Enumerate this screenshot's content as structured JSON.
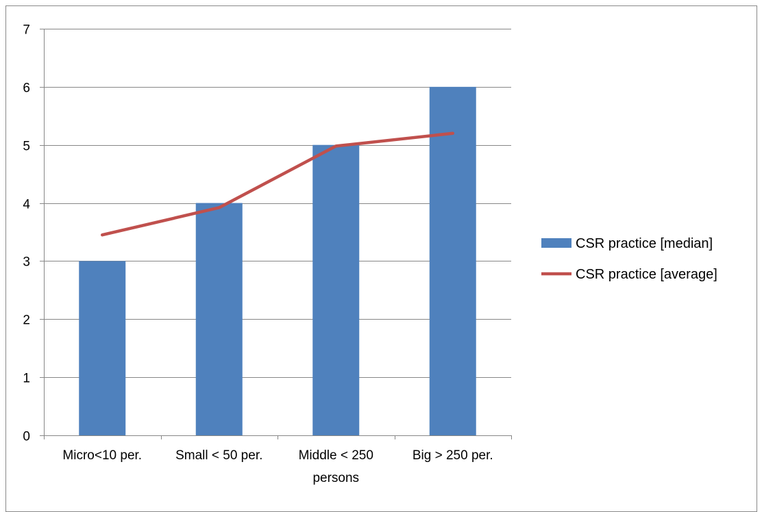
{
  "chart_data": {
    "type": "bar",
    "categories": [
      [
        "Micro<10 per."
      ],
      [
        "Small < 50 per."
      ],
      [
        "Middle < 250",
        "persons"
      ],
      [
        "Big > 250 per."
      ]
    ],
    "series": [
      {
        "name": "CSR practice [median]",
        "kind": "bar",
        "color": "#4F81BD",
        "values": [
          3,
          4,
          5,
          6
        ]
      },
      {
        "name": "CSR practice [average]",
        "kind": "line",
        "color": "#C0504D",
        "values": [
          3.45,
          3.92,
          4.98,
          5.2
        ]
      }
    ],
    "ylim": [
      0,
      7
    ],
    "yticks": [
      "0",
      "1",
      "2",
      "3",
      "4",
      "5",
      "6",
      "7"
    ],
    "grid": true,
    "legend_position": "right",
    "title": "",
    "xlabel": "",
    "ylabel": ""
  }
}
